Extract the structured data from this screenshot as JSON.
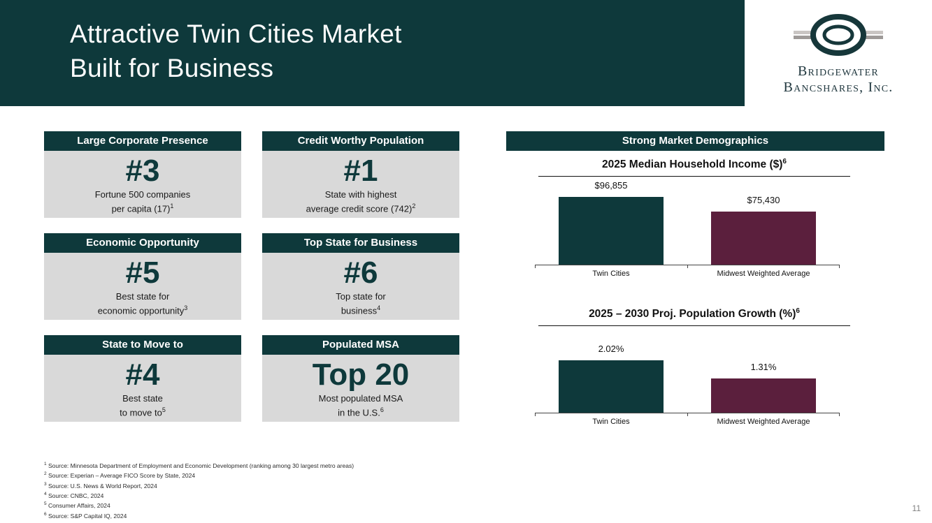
{
  "slide": {
    "title_line1": "Attractive Twin Cities Market",
    "title_line2": "Built for Business",
    "page_number": "11"
  },
  "logo": {
    "company_line1": "Bridgewater",
    "company_line2": "Bancshares, Inc."
  },
  "cards": [
    {
      "header": "Large Corporate Presence",
      "stat": "#3",
      "caption_line1": "Fortune 500 companies",
      "caption_line2": "per capita (17)",
      "footnote_ref": "1"
    },
    {
      "header": "Credit Worthy Population",
      "stat": "#1",
      "caption_line1": "State with highest",
      "caption_line2": "average credit score (742)",
      "footnote_ref": "2"
    },
    {
      "header": "Economic Opportunity",
      "stat": "#5",
      "caption_line1": "Best state for",
      "caption_line2": "economic opportunity",
      "footnote_ref": "3"
    },
    {
      "header": "Top State for Business",
      "stat": "#6",
      "caption_line1": "Top state for",
      "caption_line2": "business",
      "footnote_ref": "4"
    },
    {
      "header": "State to Move to",
      "stat": "#4",
      "caption_line1": "Best state",
      "caption_line2": "to move to",
      "footnote_ref": "5"
    },
    {
      "header": "Populated MSA",
      "stat": "Top 20",
      "caption_line1": "Most populated MSA",
      "caption_line2": "in the U.S.",
      "footnote_ref": "6"
    }
  ],
  "demographics": {
    "header": "Strong Market Demographics"
  },
  "chart_data": [
    {
      "type": "bar",
      "title": "2025 Median Household Income ($)",
      "title_sup": "6",
      "categories": [
        "Twin Cities",
        "Midwest Weighted Average"
      ],
      "values": [
        96855,
        75430
      ],
      "value_labels": [
        "$96,855",
        "$75,430"
      ],
      "colors": [
        "#0e393b",
        "#5b1f3d"
      ],
      "ylim": [
        0,
        100000
      ],
      "grid": false,
      "legend": false
    },
    {
      "type": "bar",
      "title": "2025 – 2030 Proj. Population Growth (%)",
      "title_sup": "6",
      "categories": [
        "Twin Cities",
        "Midwest Weighted Average"
      ],
      "values": [
        2.02,
        1.31
      ],
      "value_labels": [
        "2.02%",
        "1.31%"
      ],
      "colors": [
        "#0e393b",
        "#5b1f3d"
      ],
      "ylim": [
        0,
        2.2
      ],
      "grid": false,
      "legend": false
    }
  ],
  "footnotes": [
    {
      "sup": "1",
      "text": "Source: Minnesota Department of Employment and Economic Development (ranking among 30 largest metro areas)"
    },
    {
      "sup": "2",
      "text": "Source: Experian – Average FICO Score by State, 2024"
    },
    {
      "sup": "3",
      "text": "Source: U.S. News & World Report, 2024"
    },
    {
      "sup": "4",
      "text": "Source: CNBC, 2024"
    },
    {
      "sup": "5",
      "text": "Consumer Affairs, 2024"
    },
    {
      "sup": "6",
      "text": "Source: S&P Capital IQ, 2024"
    }
  ]
}
